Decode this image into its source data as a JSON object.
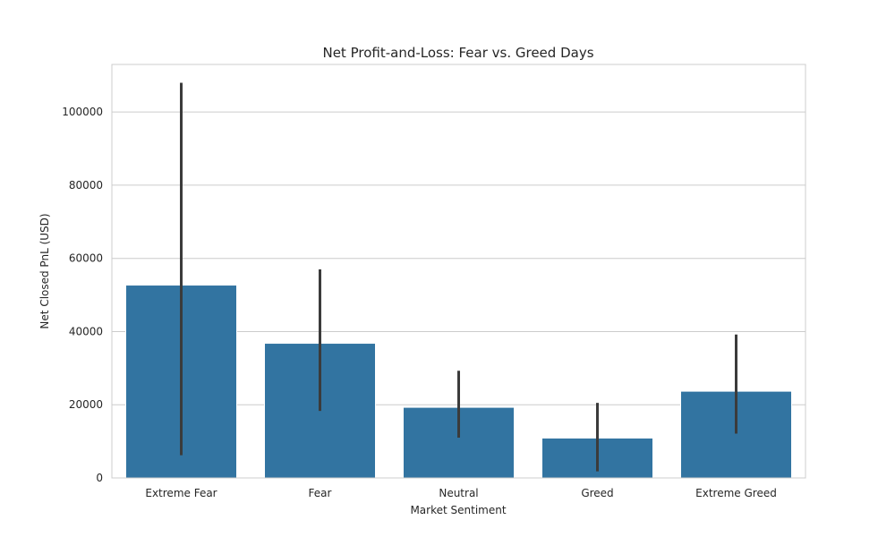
{
  "chart_data": {
    "type": "bar",
    "title": "Net Profit-and-Loss: Fear vs. Greed Days",
    "xlabel": "Market Sentiment",
    "ylabel": "Net Closed PnL (USD)",
    "categories": [
      "Extreme Fear",
      "Fear",
      "Neutral",
      "Greed",
      "Extreme Greed"
    ],
    "values": [
      52700,
      36800,
      19300,
      10900,
      23700
    ],
    "error_low": [
      6200,
      18300,
      11000,
      1800,
      12100
    ],
    "error_high": [
      108000,
      57000,
      29300,
      20500,
      39200
    ],
    "ylim": [
      0,
      113000
    ],
    "yticks": [
      0,
      20000,
      40000,
      60000,
      80000,
      100000
    ],
    "grid": "horizontal",
    "bar_color": "#3274a1",
    "error_color": "#3b3b3b"
  }
}
